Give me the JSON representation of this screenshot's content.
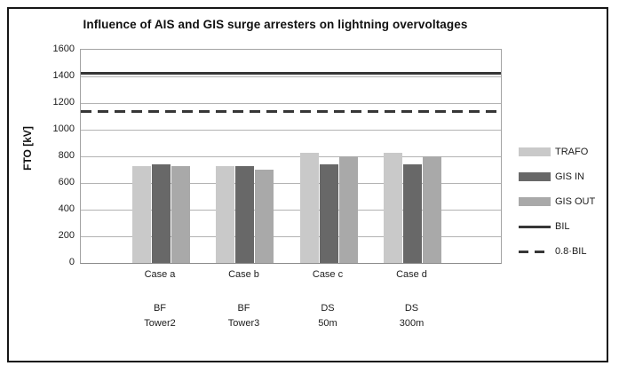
{
  "chart_data": {
    "type": "bar",
    "title": "Influence of AIS and GIS surge arresters on lightning overvoltages",
    "ylabel": "FTO [kV]",
    "ylim": [
      0,
      1600
    ],
    "yticks": [
      0,
      200,
      400,
      600,
      800,
      1000,
      1200,
      1400,
      1600
    ],
    "grid": true,
    "legend_position": "right",
    "categories": [
      "Case a",
      "Case b",
      "Case c",
      "Case d"
    ],
    "subcategories": [
      [
        "BF",
        "Tower2"
      ],
      [
        "BF",
        "Tower3"
      ],
      [
        "DS",
        "50m"
      ],
      [
        "DS",
        "300m"
      ]
    ],
    "series": [
      {
        "name": "TRAFO",
        "color": "#c9c9c9",
        "values": [
          730,
          730,
          825,
          825
        ]
      },
      {
        "name": "GIS IN",
        "color": "#686868",
        "values": [
          740,
          730,
          740,
          740
        ]
      },
      {
        "name": "GIS OUT",
        "color": "#a9a9a9",
        "values": [
          725,
          700,
          800,
          800
        ]
      }
    ],
    "reference_lines": [
      {
        "name": "BIL",
        "value": 1425,
        "style": "solid",
        "color": "#363636"
      },
      {
        "name": "0.8·BIL",
        "value": 1140,
        "style": "dashed",
        "color": "#363636"
      }
    ]
  }
}
